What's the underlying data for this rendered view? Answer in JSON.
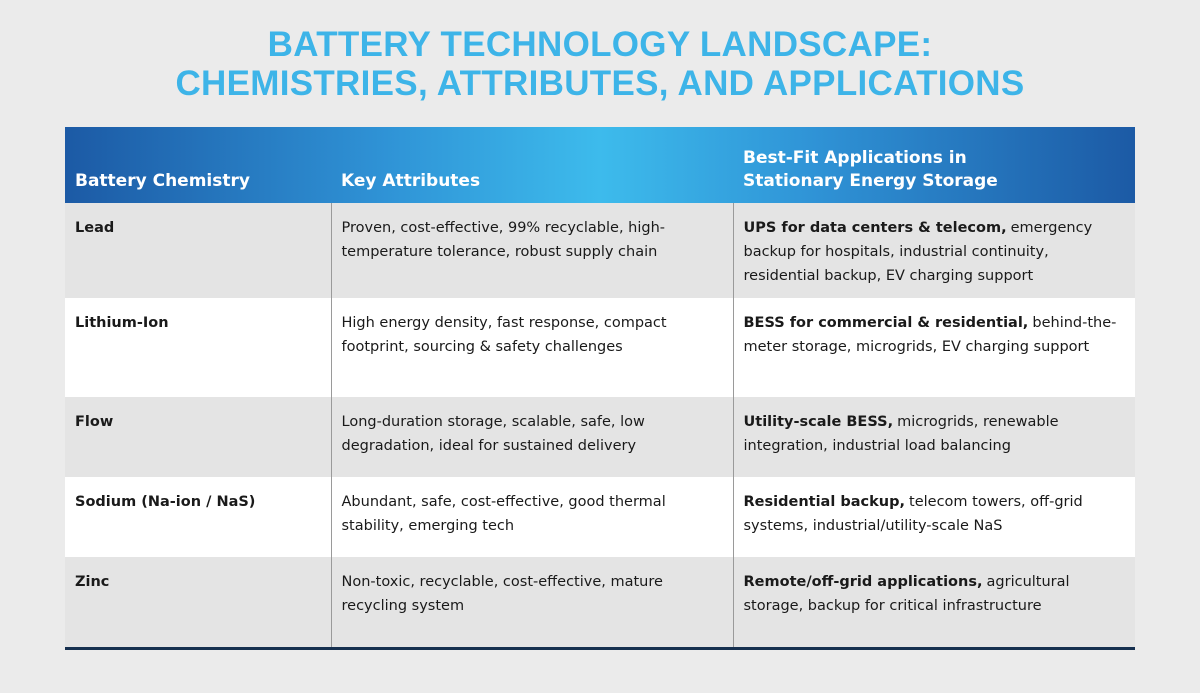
{
  "header": {
    "title_lines": [
      "BATTERY TECHNOLOGY LANDSCAPE:",
      "CHEMISTRIES, ATTRIBUTES, AND APPLICATIONS"
    ]
  },
  "table": {
    "columns": [
      "Battery Chemistry",
      "Key Attributes",
      [
        "Best-Fit Applications in",
        "Stationary Energy Storage"
      ]
    ],
    "rows": [
      {
        "chemistry": "Lead",
        "attributes": "Proven, cost-effective, 99% recyclable, high-temperature tolerance, robust supply chain",
        "applications": {
          "lead": "UPS for data centers & telecom,",
          "rest": "emergency backup for hospitals, industrial continuity, residential backup, EV charging support"
        }
      },
      {
        "chemistry": "Lithium-Ion",
        "attributes": "High energy density, fast response, compact footprint, sourcing & safety challenges",
        "applications": {
          "lead": "BESS for commercial & residential,",
          "rest": "behind-the-meter storage, microgrids, EV charging support"
        }
      },
      {
        "chemistry": "Flow",
        "attributes": "Long-duration storage, scalable, safe, low degradation, ideal for sustained delivery",
        "applications": {
          "lead": "Utility-scale BESS,",
          "rest": "microgrids, renewable integration, industrial load balancing"
        }
      },
      {
        "chemistry": "Sodium (Na-ion / NaS)",
        "attributes": "Abundant, safe, cost-effective, good thermal stability, emerging tech",
        "applications": {
          "lead": "Residential backup,",
          "rest": "telecom towers, off-grid systems, industrial/utility-scale NaS"
        }
      },
      {
        "chemistry": "Zinc",
        "attributes": "Non-toxic, recyclable, cost-effective, mature recycling system",
        "applications": {
          "lead": "Remote/off-grid applications,",
          "rest": "agricultural storage, backup for critical infrastructure"
        }
      }
    ]
  }
}
